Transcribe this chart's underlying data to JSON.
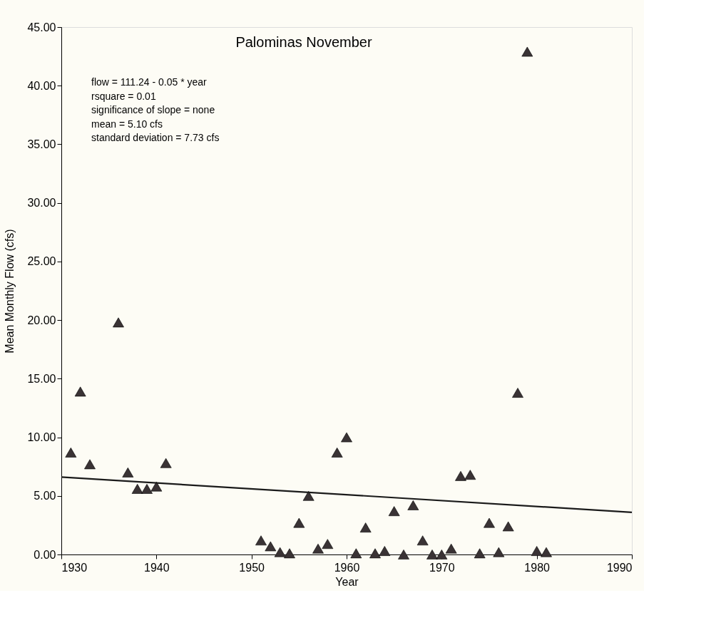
{
  "chart_data": {
    "type": "scatter",
    "title": "Palominas    November",
    "xlabel": "Year",
    "ylabel": "Mean Monthly Flow (cfs)",
    "xlim": [
      1930,
      1990
    ],
    "xticks": [
      1930,
      1940,
      1950,
      1960,
      1970,
      1980,
      1990
    ],
    "ylim": [
      0,
      45
    ],
    "yticks": [
      {
        "value": 0,
        "label": "0.00"
      },
      {
        "value": 5,
        "label": "5.00"
      },
      {
        "value": 10,
        "label": "10.00"
      },
      {
        "value": 15,
        "label": "15.00"
      },
      {
        "value": 20,
        "label": "20.00"
      },
      {
        "value": 25,
        "label": "25.00"
      },
      {
        "value": 30,
        "label": "30.00"
      },
      {
        "value": 35,
        "label": "35.00"
      },
      {
        "value": 40,
        "label": "40.00"
      },
      {
        "value": 45,
        "label": "45.00"
      }
    ],
    "grid": false,
    "annotations": [
      "flow = 111.24 - 0.05 * year",
      "rsquare = 0.01",
      "significance of slope = none",
      "mean = 5.10 cfs",
      "standard deviation = 7.73 cfs"
    ],
    "series": [
      {
        "marker": "triangle",
        "color": "#3a3335",
        "x": [
          1931,
          1932,
          1933,
          1936,
          1937,
          1938,
          1939,
          1940,
          1941,
          1951,
          1952,
          1953,
          1954,
          1955,
          1956,
          1957,
          1958,
          1959,
          1960,
          1961,
          1962,
          1963,
          1964,
          1965,
          1966,
          1967,
          1968,
          1969,
          1970,
          1971,
          1972,
          1973,
          1974,
          1975,
          1976,
          1977,
          1978,
          1979,
          1980,
          1981
        ],
        "values": [
          8.7,
          13.9,
          7.7,
          19.8,
          7.0,
          5.6,
          5.6,
          5.8,
          7.8,
          1.2,
          0.7,
          0.2,
          0.1,
          2.7,
          5.0,
          0.5,
          0.9,
          8.7,
          10.0,
          0.1,
          2.3,
          0.1,
          0.3,
          3.7,
          0.0,
          4.2,
          1.2,
          0.0,
          0.0,
          0.5,
          6.7,
          6.8,
          0.1,
          2.7,
          0.2,
          2.4,
          13.8,
          42.9,
          0.3,
          0.2
        ]
      },
      {
        "type": "line",
        "line_style": "solid",
        "color": "#1a1a1a",
        "x": [
          1930,
          1990
        ],
        "values": [
          6.6,
          3.6
        ]
      }
    ]
  }
}
